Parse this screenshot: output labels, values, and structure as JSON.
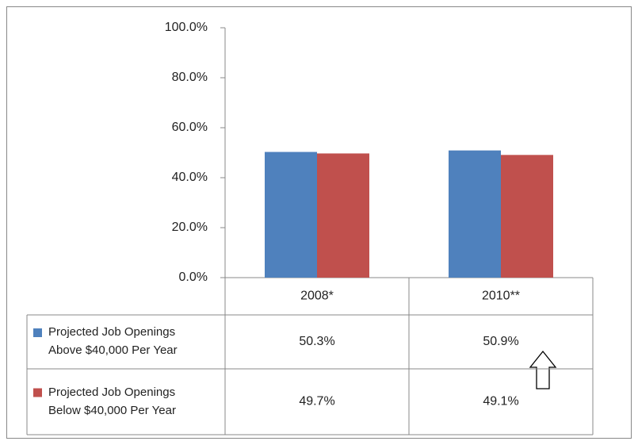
{
  "chart_data": {
    "type": "bar",
    "categories": [
      "2008*",
      "2010**"
    ],
    "series": [
      {
        "name": "Projected Job Openings Above $40,000 Per Year",
        "color": "#4f81bd",
        "values": [
          50.3,
          50.9
        ],
        "value_labels": [
          "50.3%",
          "50.9%"
        ]
      },
      {
        "name": "Projected Job Openings Below $40,000 Per Year",
        "color": "#c0504d",
        "values": [
          49.7,
          49.1
        ],
        "value_labels": [
          "49.7%",
          "49.1%"
        ]
      }
    ],
    "ylim": [
      0,
      100
    ],
    "yticks": [
      {
        "value": 0,
        "label": "0.0%"
      },
      {
        "value": 20,
        "label": "20.0%"
      },
      {
        "value": 40,
        "label": "40.0%"
      },
      {
        "value": 60,
        "label": "60.0%"
      },
      {
        "value": 80,
        "label": "80.0%"
      },
      {
        "value": 100,
        "label": "100.0%"
      }
    ],
    "grid": false
  }
}
